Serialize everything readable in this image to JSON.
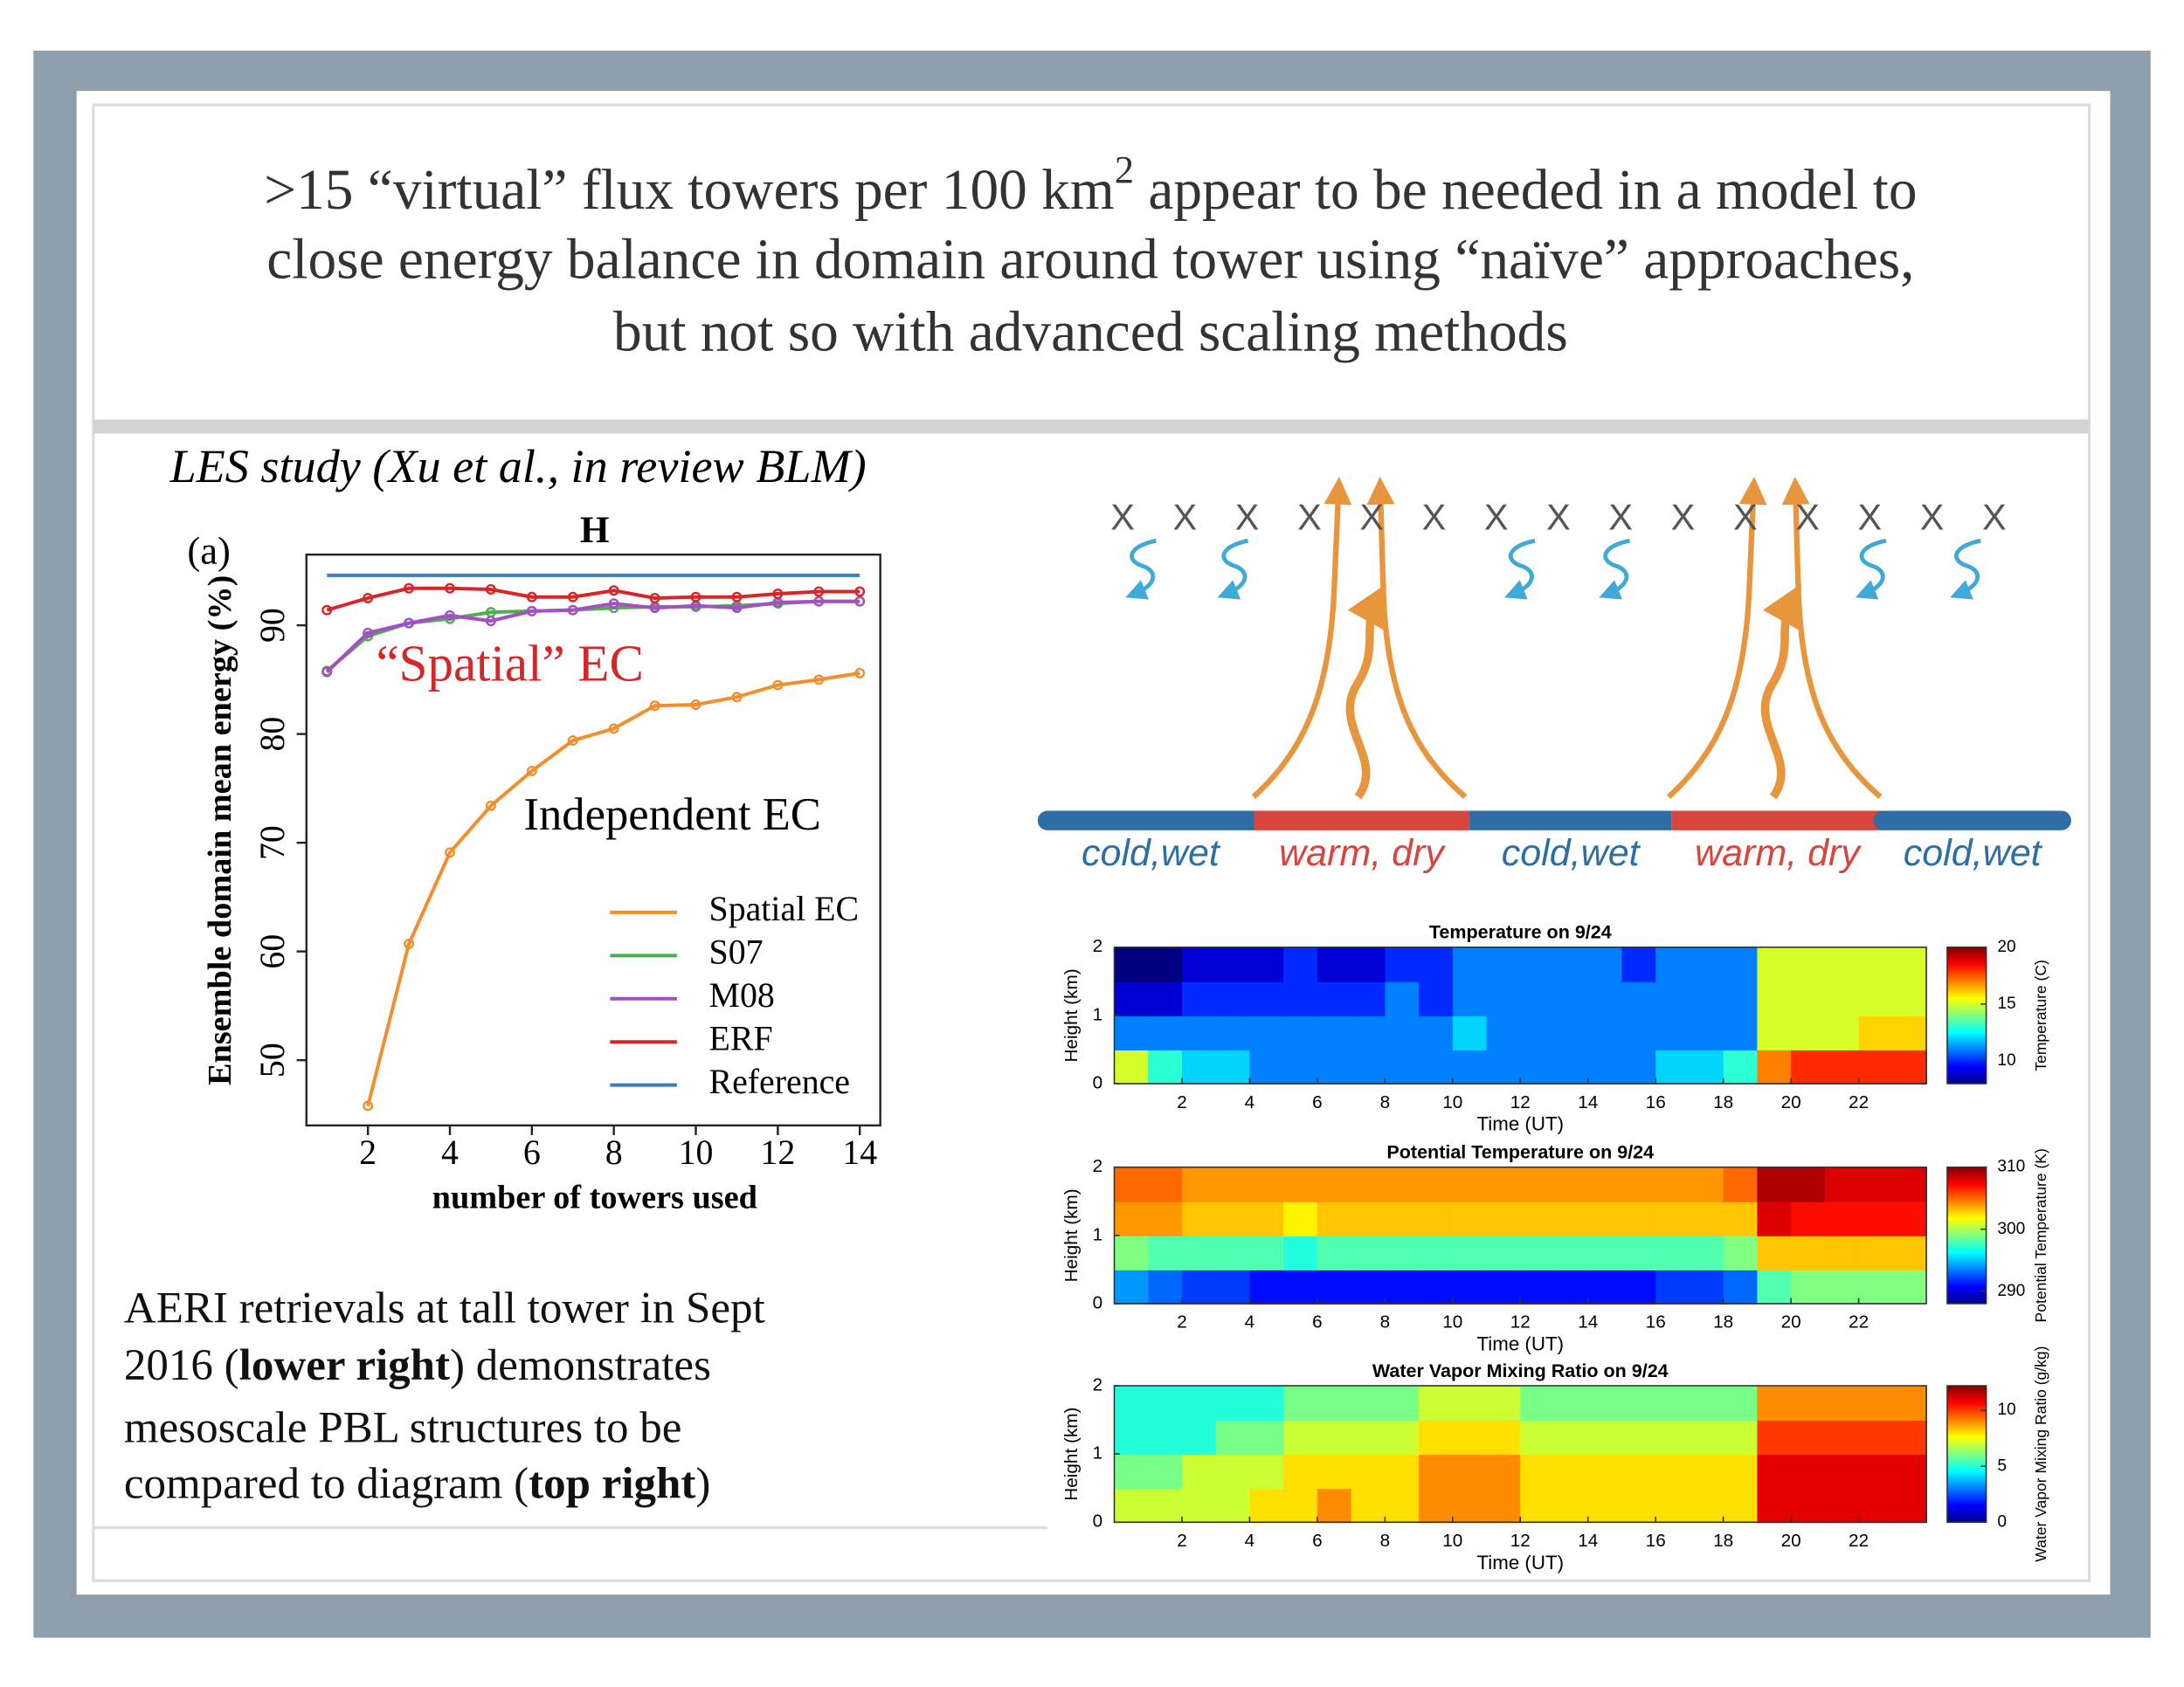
{
  "slide": {
    "title_lines": [
      [
        {
          "text": ">15 “virtual” flux towers per 100 km"
        },
        {
          "text": "2",
          "sup": true
        },
        {
          "text": " appear to be needed in a model to"
        }
      ],
      [
        {
          "text": "close energy balance in domain around tower using “naïve” approaches,"
        }
      ],
      [
        {
          "text": "but not so with advanced scaling methods"
        }
      ]
    ],
    "subtitle": "LES study (Xu et al., in review BLM)",
    "body_lines": [
      [
        {
          "text": "AERI retrievals at tall tower in Sept"
        }
      ],
      [
        {
          "text": "2016 ("
        },
        {
          "text": "lower right",
          "bold": true
        },
        {
          "text": ") demonstrates"
        }
      ],
      [
        {
          "text": "mesoscale PBL structures to be"
        }
      ],
      [
        {
          "text": "compared to diagram ("
        },
        {
          "text": "top right",
          "bold": true
        },
        {
          "text": ")"
        }
      ]
    ]
  },
  "diagram": {
    "markers": [
      "X",
      "X",
      "X",
      "X",
      "X",
      "X",
      "X",
      "X",
      "X",
      "X",
      "X",
      "X",
      "X",
      "X",
      "X"
    ],
    "zones": [
      {
        "label": "cold,wet",
        "color": "#2f6ea5"
      },
      {
        "label": "warm, dry",
        "color": "#d9453d"
      },
      {
        "label": "cold,wet",
        "color": "#2f6ea5"
      },
      {
        "label": "warm, dry",
        "color": "#d9453d"
      },
      {
        "label": "cold,wet",
        "color": "#2f6ea5"
      }
    ]
  },
  "chart_data": [
    {
      "type": "line",
      "panel_label": "(a)",
      "title": "H",
      "xlabel": "number of towers used",
      "ylabel": "Ensemble domain mean energy (%)",
      "x": [
        1,
        2,
        3,
        4,
        5,
        6,
        7,
        8,
        9,
        10,
        11,
        12,
        13,
        14
      ],
      "series": [
        {
          "name": "Spatial EC",
          "color": "#f28e2b",
          "values": [
            null,
            45.8,
            60.7,
            69.1,
            73.4,
            76.6,
            79.4,
            80.5,
            82.6,
            82.7,
            83.4,
            84.5,
            85.0,
            85.6
          ]
        },
        {
          "name": "S07",
          "color": "#4caf50",
          "values": [
            85.8,
            89.0,
            90.2,
            90.6,
            91.2,
            91.3,
            91.4,
            91.6,
            91.7,
            91.7,
            91.8,
            92.0,
            92.2,
            92.2
          ]
        },
        {
          "name": "M08",
          "color": "#a54fc4",
          "values": [
            85.7,
            89.3,
            90.2,
            90.9,
            90.4,
            91.3,
            91.4,
            92.0,
            91.6,
            91.8,
            91.6,
            92.1,
            92.2,
            92.2
          ]
        },
        {
          "name": "ERF",
          "color": "#d62728",
          "values": [
            91.4,
            92.5,
            93.4,
            93.4,
            93.3,
            92.6,
            92.6,
            93.2,
            92.5,
            92.6,
            92.6,
            92.9,
            93.1,
            93.1
          ]
        },
        {
          "name": "Reference",
          "color": "#3a7fc1",
          "markers": false,
          "values": [
            94.6,
            94.6,
            94.6,
            94.6,
            94.6,
            94.6,
            94.6,
            94.6,
            94.6,
            94.6,
            94.6,
            94.6,
            94.6,
            94.6
          ]
        }
      ],
      "annotations": [
        {
          "text": "“Spatial” EC",
          "color": "#d62728"
        },
        {
          "text": "Independent EC",
          "color": "#000000"
        }
      ],
      "xlim": [
        0.5,
        14.5
      ],
      "ylim": [
        44,
        96.5
      ],
      "xticks": [
        2,
        4,
        6,
        8,
        10,
        12,
        14
      ],
      "yticks": [
        50,
        60,
        70,
        80,
        90
      ],
      "legend": "lower right"
    },
    {
      "type": "heatmap",
      "title": "Temperature on 9/24",
      "xlabel": "Time (UT)",
      "ylabel": "Height (km)",
      "colorbar_label": "Temperature (C)",
      "colormap": "jet",
      "x": [
        0.5,
        1.5,
        2.5,
        3.5,
        4.5,
        5.5,
        6.5,
        7.5,
        8.5,
        9.5,
        10.5,
        11.5,
        12.5,
        13.5,
        14.5,
        15.5,
        16.5,
        17.5,
        18.5,
        19.5,
        20.5,
        21.5,
        22.5,
        23.5
      ],
      "y": [
        0.25,
        0.75,
        1.25,
        1.75
      ],
      "z": [
        [
          15,
          13,
          12,
          12,
          11,
          11,
          11,
          11,
          11,
          11,
          11,
          11,
          11,
          11,
          11,
          11,
          12,
          12,
          13,
          17,
          18,
          18,
          18,
          18
        ],
        [
          11,
          11,
          11,
          11,
          11,
          11,
          11,
          11,
          11,
          11,
          12,
          11,
          11,
          11,
          11,
          11,
          11,
          11,
          11,
          15,
          15,
          15,
          16,
          16
        ],
        [
          9,
          9,
          10,
          10,
          10,
          10,
          10,
          10,
          11,
          10,
          11,
          11,
          11,
          11,
          11,
          11,
          11,
          11,
          11,
          15,
          15,
          15,
          15,
          15
        ],
        [
          8,
          8,
          9,
          9,
          9,
          10,
          9,
          9,
          10,
          10,
          11,
          11,
          11,
          11,
          11,
          10,
          11,
          11,
          11,
          15,
          15,
          15,
          15,
          15
        ]
      ],
      "xlim": [
        0,
        24
      ],
      "ylim": [
        0,
        2
      ],
      "xticks": [
        2,
        4,
        6,
        8,
        10,
        12,
        14,
        16,
        18,
        20,
        22
      ],
      "yticks": [
        0,
        1,
        2
      ],
      "clim": [
        8,
        20
      ],
      "cticks": [
        10,
        15,
        20
      ]
    },
    {
      "type": "heatmap",
      "title": "Potential Temperature on 9/24",
      "xlabel": "Time (UT)",
      "ylabel": "Height (km)",
      "colorbar_label": "Potential Temperature (K)",
      "colormap": "jet",
      "x": [
        0.5,
        1.5,
        2.5,
        3.5,
        4.5,
        5.5,
        6.5,
        7.5,
        8.5,
        9.5,
        10.5,
        11.5,
        12.5,
        13.5,
        14.5,
        15.5,
        16.5,
        17.5,
        18.5,
        19.5,
        20.5,
        21.5,
        22.5,
        23.5
      ],
      "y": [
        0.25,
        0.75,
        1.25,
        1.75
      ],
      "z": [
        [
          294,
          293,
          292,
          292,
          291,
          291,
          291,
          291,
          291,
          291,
          291,
          291,
          291,
          291,
          291,
          291,
          292,
          292,
          293,
          298,
          299,
          299,
          299,
          299
        ],
        [
          299,
          298,
          298,
          298,
          298,
          297,
          298,
          298,
          298,
          298,
          298,
          298,
          298,
          298,
          298,
          298,
          298,
          298,
          299,
          303,
          303,
          303,
          303,
          303
        ],
        [
          304,
          304,
          303,
          303,
          303,
          302,
          303,
          303,
          303,
          303,
          303,
          303,
          303,
          303,
          303,
          303,
          303,
          303,
          303,
          308,
          307,
          307,
          307,
          307
        ],
        [
          305,
          305,
          304,
          304,
          304,
          304,
          304,
          304,
          304,
          304,
          304,
          304,
          304,
          304,
          304,
          304,
          304,
          304,
          305,
          309,
          309,
          308,
          308,
          308
        ]
      ],
      "xlim": [
        0,
        24
      ],
      "ylim": [
        0,
        2
      ],
      "xticks": [
        2,
        4,
        6,
        8,
        10,
        12,
        14,
        16,
        18,
        20,
        22
      ],
      "yticks": [
        0,
        1,
        2
      ],
      "clim": [
        288,
        310
      ],
      "cticks": [
        290,
        300,
        310
      ]
    },
    {
      "type": "heatmap",
      "title": "Water Vapor Mixing Ratio on 9/24",
      "xlabel": "Time (UT)",
      "ylabel": "Height (km)",
      "colorbar_label": "Water Vapor Mixing Ratio (g/kg)",
      "colormap": "jet",
      "x": [
        0.5,
        1.5,
        2.5,
        3.5,
        4.5,
        5.5,
        6.5,
        7.5,
        8.5,
        9.5,
        10.5,
        11.5,
        12.5,
        13.5,
        14.5,
        15.5,
        16.5,
        17.5,
        18.5,
        19.5,
        20.5,
        21.5,
        22.5,
        23.5
      ],
      "y": [
        0.25,
        0.75,
        1.25,
        1.75
      ],
      "z": [
        [
          7,
          7,
          7,
          7,
          8,
          8,
          9,
          8,
          8,
          9,
          9,
          9,
          8,
          8,
          8,
          8,
          8,
          8,
          8,
          11,
          11,
          11,
          11,
          11
        ],
        [
          6,
          6,
          7,
          7,
          7,
          8,
          8,
          8,
          8,
          9,
          9,
          9,
          8,
          8,
          8,
          8,
          8,
          8,
          8,
          11,
          11,
          11,
          11,
          11
        ],
        [
          5,
          5,
          5,
          6,
          6,
          7,
          7,
          7,
          7,
          8,
          8,
          8,
          7,
          7,
          7,
          7,
          7,
          7,
          7,
          10,
          10,
          10,
          10,
          10
        ],
        [
          5,
          5,
          5,
          5,
          5,
          6,
          6,
          6,
          6,
          7,
          7,
          7,
          6,
          6,
          6,
          6,
          6,
          6,
          6,
          9,
          9,
          9,
          9,
          9
        ]
      ],
      "xlim": [
        0,
        24
      ],
      "ylim": [
        0,
        2
      ],
      "xticks": [
        2,
        4,
        6,
        8,
        10,
        12,
        14,
        16,
        18,
        20,
        22
      ],
      "yticks": [
        0,
        1,
        2
      ],
      "clim": [
        0,
        12.2
      ],
      "cticks": [
        0,
        5,
        10
      ]
    }
  ]
}
